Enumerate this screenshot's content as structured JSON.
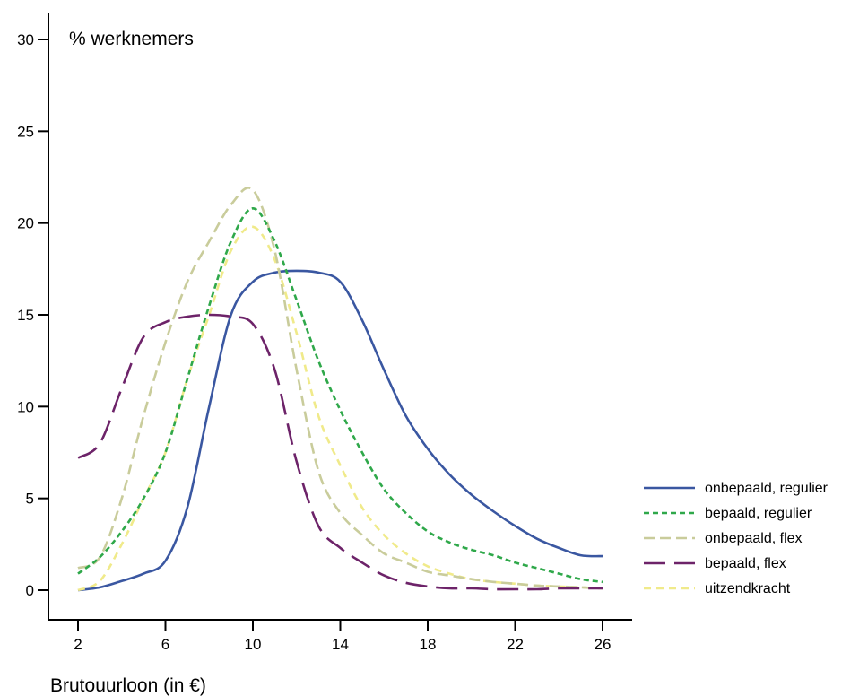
{
  "chart_data": {
    "type": "line",
    "ylabel": "% werknemers",
    "xlabel": "Brutouurloon (in €)",
    "xlim": [
      0.5,
      28.5
    ],
    "ylim": [
      -1.5,
      31.5
    ],
    "xticks": [
      2,
      6,
      10,
      14,
      18,
      22,
      26
    ],
    "yticks": [
      0,
      5,
      10,
      15,
      20,
      25,
      30
    ],
    "grid": false,
    "legend_position": "right",
    "series": [
      {
        "name": "onbepaald, regulier",
        "color": "#3a57a1",
        "dash": "solid",
        "x": [
          2,
          3,
          4,
          5,
          6,
          7,
          8,
          9,
          10,
          11,
          12,
          13,
          14,
          15,
          16,
          17,
          18,
          19,
          20,
          21,
          22,
          23,
          24,
          25,
          26
        ],
        "y": [
          0.0,
          0.15,
          0.5,
          0.9,
          1.6,
          4.5,
          10.0,
          15.0,
          16.8,
          17.3,
          17.4,
          17.3,
          16.8,
          14.7,
          12.0,
          9.5,
          7.7,
          6.3,
          5.2,
          4.3,
          3.5,
          2.8,
          2.3,
          1.9,
          1.85
        ]
      },
      {
        "name": "bepaald, regulier",
        "color": "#2fa84a",
        "dash": "6 4",
        "x": [
          2,
          3,
          4,
          5,
          6,
          7,
          8,
          9,
          10,
          11,
          12,
          13,
          14,
          15,
          16,
          17,
          18,
          19,
          20,
          21,
          22,
          23,
          24,
          25,
          26
        ],
        "y": [
          0.9,
          1.8,
          3.2,
          5.0,
          7.5,
          11.5,
          15.5,
          19.0,
          20.8,
          19.0,
          15.8,
          12.5,
          9.8,
          7.5,
          5.5,
          4.2,
          3.2,
          2.6,
          2.2,
          1.9,
          1.5,
          1.2,
          0.9,
          0.6,
          0.45
        ]
      },
      {
        "name": "onbepaald, flex",
        "color": "#c9cc9b",
        "dash": "12 6",
        "x": [
          2,
          3,
          4,
          5,
          6,
          7,
          8,
          9,
          10,
          11,
          12,
          13,
          14,
          15,
          16,
          17,
          18,
          19,
          20,
          21,
          22,
          23,
          24,
          25,
          26
        ],
        "y": [
          1.2,
          1.8,
          5.0,
          9.5,
          13.5,
          16.8,
          19.0,
          21.0,
          21.8,
          18.5,
          12.0,
          6.5,
          4.2,
          3.0,
          2.0,
          1.5,
          1.0,
          0.8,
          0.6,
          0.45,
          0.35,
          0.25,
          0.2,
          0.15,
          0.1
        ]
      },
      {
        "name": "bepaald, flex",
        "color": "#6d2369",
        "dash": "24 10",
        "x": [
          2,
          3,
          4,
          5,
          6,
          7,
          8,
          9,
          10,
          11,
          12,
          13,
          14,
          15,
          16,
          17,
          18,
          19,
          20,
          21,
          22,
          23,
          24,
          25,
          26
        ],
        "y": [
          7.2,
          8.0,
          11.0,
          13.8,
          14.6,
          14.9,
          15.0,
          14.9,
          14.5,
          12.0,
          7.0,
          3.5,
          2.3,
          1.5,
          0.8,
          0.4,
          0.2,
          0.1,
          0.1,
          0.05,
          0.05,
          0.05,
          0.1,
          0.1,
          0.1
        ]
      },
      {
        "name": "uitzendkracht",
        "color": "#f0ea8a",
        "dash": "8 6",
        "x": [
          2,
          3,
          4,
          5,
          6,
          7,
          8,
          9,
          10,
          11,
          12,
          13,
          14,
          15,
          16,
          17,
          18,
          19,
          20,
          21,
          22,
          23,
          24,
          25,
          26
        ],
        "y": [
          0.0,
          0.5,
          2.5,
          5.0,
          7.5,
          11.5,
          15.0,
          18.5,
          19.8,
          18.0,
          14.0,
          9.5,
          6.8,
          4.5,
          3.0,
          2.0,
          1.3,
          0.9,
          0.6,
          0.45,
          0.35,
          0.25,
          0.2,
          0.15,
          0.1
        ]
      }
    ]
  }
}
